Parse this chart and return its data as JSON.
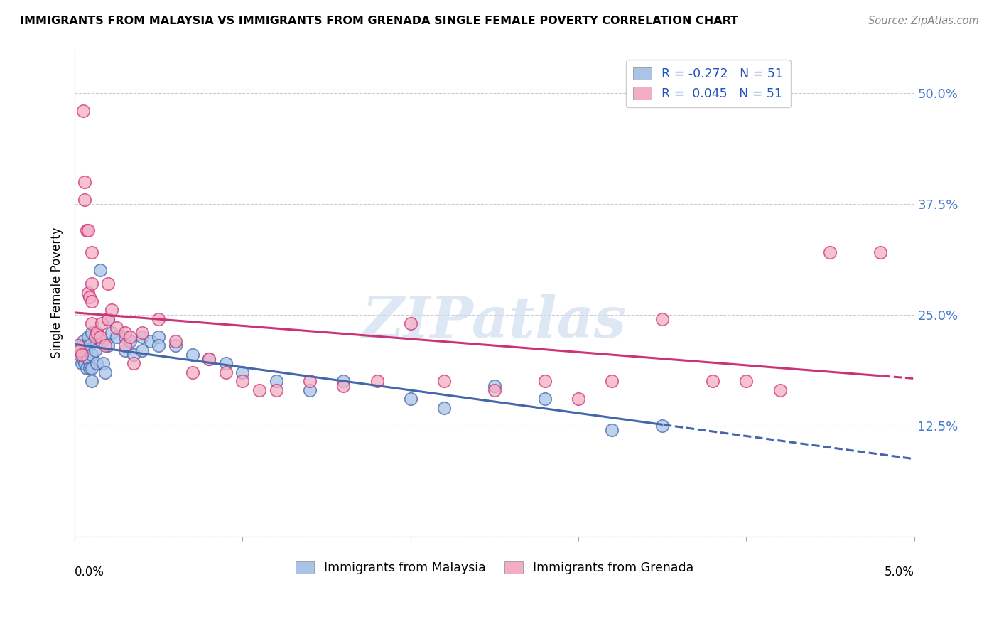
{
  "title": "IMMIGRANTS FROM MALAYSIA VS IMMIGRANTS FROM GRENADA SINGLE FEMALE POVERTY CORRELATION CHART",
  "source": "Source: ZipAtlas.com",
  "ylabel": "Single Female Poverty",
  "xlim": [
    0.0,
    0.05
  ],
  "ylim": [
    0.0,
    0.55
  ],
  "yticks": [
    0.0,
    0.125,
    0.25,
    0.375,
    0.5
  ],
  "ytick_labels": [
    "",
    "12.5%",
    "25.0%",
    "37.5%",
    "50.0%"
  ],
  "legend_r1": "R = -0.272",
  "legend_n1": "N = 51",
  "legend_r2": "R =  0.045",
  "legend_n2": "N = 51",
  "color_malaysia": "#aac4e8",
  "color_grenada": "#f4aec4",
  "color_malaysia_line": "#4466aa",
  "color_grenada_line": "#cc3377",
  "label_malaysia": "Immigrants from Malaysia",
  "label_grenada": "Immigrants from Grenada",
  "malaysia_x": [
    0.0002,
    0.0003,
    0.0004,
    0.0004,
    0.0005,
    0.0005,
    0.0006,
    0.0006,
    0.0007,
    0.0007,
    0.0008,
    0.0008,
    0.0009,
    0.0009,
    0.001,
    0.001,
    0.001,
    0.001,
    0.0012,
    0.0013,
    0.0015,
    0.0016,
    0.0017,
    0.0018,
    0.002,
    0.002,
    0.0022,
    0.0025,
    0.003,
    0.003,
    0.0033,
    0.0035,
    0.004,
    0.004,
    0.0045,
    0.005,
    0.005,
    0.006,
    0.007,
    0.008,
    0.009,
    0.01,
    0.012,
    0.014,
    0.016,
    0.02,
    0.022,
    0.025,
    0.028,
    0.032,
    0.035
  ],
  "malaysia_y": [
    0.215,
    0.205,
    0.21,
    0.195,
    0.22,
    0.2,
    0.215,
    0.195,
    0.21,
    0.19,
    0.225,
    0.2,
    0.215,
    0.19,
    0.23,
    0.205,
    0.19,
    0.175,
    0.21,
    0.195,
    0.3,
    0.22,
    0.195,
    0.185,
    0.245,
    0.215,
    0.23,
    0.225,
    0.225,
    0.21,
    0.22,
    0.205,
    0.225,
    0.21,
    0.22,
    0.225,
    0.215,
    0.215,
    0.205,
    0.2,
    0.195,
    0.185,
    0.175,
    0.165,
    0.175,
    0.155,
    0.145,
    0.17,
    0.155,
    0.12,
    0.125
  ],
  "grenada_x": [
    0.0002,
    0.0003,
    0.0004,
    0.0005,
    0.0006,
    0.0006,
    0.0007,
    0.0008,
    0.0008,
    0.0009,
    0.001,
    0.001,
    0.001,
    0.001,
    0.0012,
    0.0013,
    0.0015,
    0.0016,
    0.0018,
    0.002,
    0.002,
    0.0022,
    0.0025,
    0.003,
    0.003,
    0.0033,
    0.0035,
    0.004,
    0.005,
    0.006,
    0.007,
    0.008,
    0.009,
    0.01,
    0.011,
    0.012,
    0.014,
    0.016,
    0.018,
    0.02,
    0.022,
    0.025,
    0.028,
    0.03,
    0.032,
    0.035,
    0.038,
    0.04,
    0.042,
    0.045,
    0.048
  ],
  "grenada_y": [
    0.215,
    0.21,
    0.205,
    0.48,
    0.4,
    0.38,
    0.345,
    0.345,
    0.275,
    0.27,
    0.32,
    0.285,
    0.265,
    0.24,
    0.225,
    0.23,
    0.225,
    0.24,
    0.215,
    0.285,
    0.245,
    0.255,
    0.235,
    0.23,
    0.215,
    0.225,
    0.195,
    0.23,
    0.245,
    0.22,
    0.185,
    0.2,
    0.185,
    0.175,
    0.165,
    0.165,
    0.175,
    0.17,
    0.175,
    0.24,
    0.175,
    0.165,
    0.175,
    0.155,
    0.175,
    0.245,
    0.175,
    0.175,
    0.165,
    0.32,
    0.32
  ],
  "watermark_text": "ZIPatlas",
  "background_color": "#FFFFFF",
  "grid_color": "#cccccc"
}
